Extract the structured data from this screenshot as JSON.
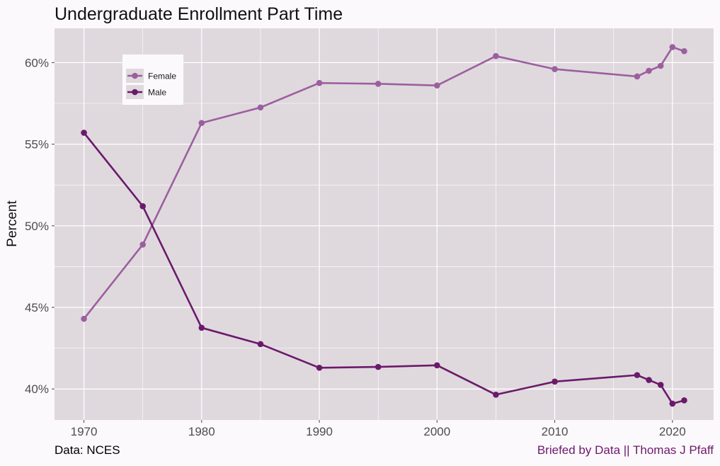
{
  "chart_data": {
    "type": "line",
    "title": "Undergraduate Enrollment Part Time",
    "xlabel": "",
    "ylabel": "Percent",
    "xlim": [
      1967.5,
      2023.5
    ],
    "ylim": [
      38.1,
      62.1
    ],
    "x_ticks": [
      1970,
      1980,
      1990,
      2000,
      2010,
      2020
    ],
    "y_ticks": [
      40,
      45,
      50,
      55,
      60
    ],
    "y_tick_labels": [
      "40%",
      "45%",
      "50%",
      "55%",
      "60%"
    ],
    "grid": true,
    "legend_position": "top-left",
    "series": [
      {
        "name": "Female",
        "color": "#9c5f9e",
        "points": [
          [
            1970,
            44.3
          ],
          [
            1975,
            48.85
          ],
          [
            1980,
            56.3
          ],
          [
            1985,
            57.25
          ],
          [
            1990,
            58.75
          ],
          [
            1995,
            58.7
          ],
          [
            2000,
            58.6
          ],
          [
            2005,
            60.4
          ],
          [
            2010,
            59.6
          ],
          [
            2017,
            59.15
          ],
          [
            2018,
            59.5
          ],
          [
            2019,
            59.8
          ],
          [
            2020,
            60.95
          ],
          [
            2021,
            60.7
          ]
        ]
      },
      {
        "name": "Male",
        "color": "#6b1a6b",
        "points": [
          [
            1970,
            55.7
          ],
          [
            1975,
            51.2
          ],
          [
            1980,
            43.75
          ],
          [
            1985,
            42.75
          ],
          [
            1990,
            41.3
          ],
          [
            1995,
            41.35
          ],
          [
            2000,
            41.45
          ],
          [
            2005,
            39.65
          ],
          [
            2010,
            40.45
          ],
          [
            2017,
            40.85
          ],
          [
            2018,
            40.55
          ],
          [
            2019,
            40.25
          ],
          [
            2020,
            39.1
          ],
          [
            2021,
            39.3
          ]
        ]
      }
    ]
  },
  "footer": {
    "source": "Data: NCES",
    "credit": "Briefed by Data || Thomas J Pfaff",
    "credit_color": "#6b1a6b"
  }
}
